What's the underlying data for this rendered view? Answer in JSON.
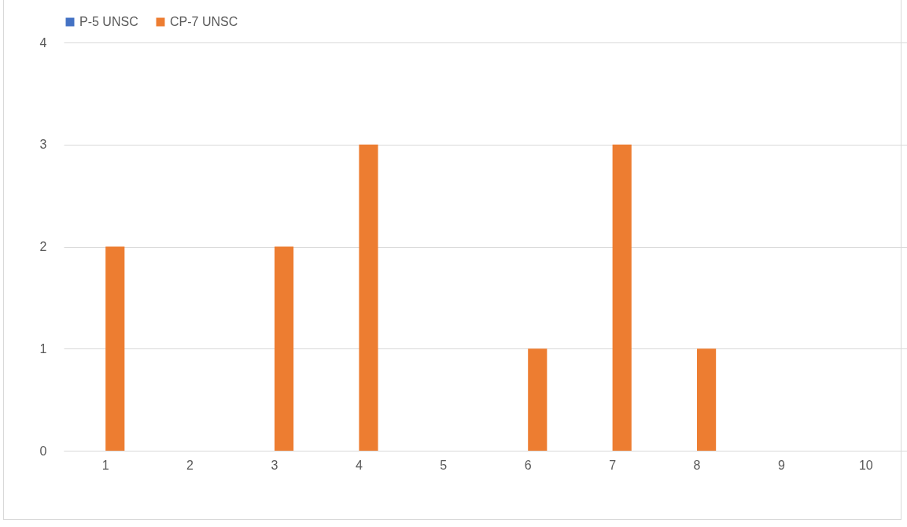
{
  "chart_data": {
    "type": "bar",
    "categories": [
      "1",
      "2",
      "3",
      "4",
      "5",
      "6",
      "7",
      "8",
      "9",
      "10"
    ],
    "series": [
      {
        "name": "P-5 UNSC",
        "color": "#4472c4",
        "values": [
          0,
          0,
          0,
          0,
          0,
          0,
          0,
          0,
          0,
          0
        ]
      },
      {
        "name": "CP-7 UNSC",
        "color": "#ed7d31",
        "values": [
          2,
          0,
          2,
          3,
          0,
          1,
          3,
          1,
          0,
          0
        ]
      }
    ],
    "ylim": [
      0,
      4
    ],
    "yticks": [
      0,
      1,
      2,
      3,
      4
    ],
    "grid": "y",
    "legend": "top"
  }
}
